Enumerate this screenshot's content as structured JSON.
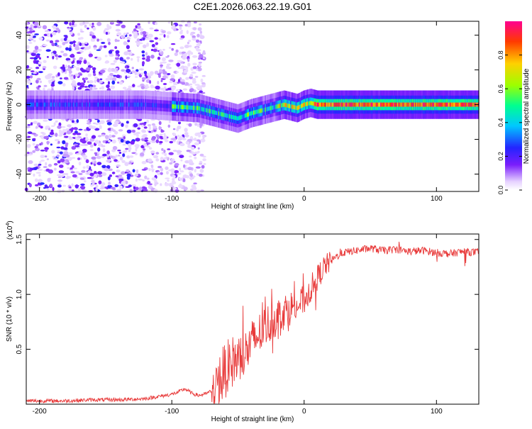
{
  "title": "C2E1.2026.063.22.19.G01",
  "chart_data": [
    {
      "type": "heatmap",
      "name": "spectrogram",
      "xlabel": "Height of straight line (km)",
      "ylabel": "Frequency (Hz)",
      "xlim": [
        -210,
        132
      ],
      "ylim": [
        -50,
        48
      ],
      "xticks": [
        -200,
        -100,
        0,
        100
      ],
      "yticks": [
        -40,
        -20,
        0,
        20,
        40
      ],
      "ridge_frequency_hz": {
        "x": [
          -210,
          -180,
          -150,
          -120,
          -100,
          -80,
          -70,
          -60,
          -50,
          -40,
          -30,
          -20,
          -15,
          -10,
          -5,
          0,
          5,
          10,
          40,
          80,
          100,
          132
        ],
        "y": [
          0,
          0,
          0,
          0,
          -1,
          -2,
          -4,
          -6,
          -8,
          -5,
          -3,
          -1,
          0,
          -1,
          -2,
          0,
          1,
          0,
          0,
          0,
          0,
          0
        ]
      },
      "colorbar": {
        "label": "Normalized spectral amplitude",
        "range": [
          0,
          1
        ],
        "ticks": [
          "0.0",
          "0.2",
          "0.4",
          "0.6",
          "0.8"
        ]
      }
    },
    {
      "type": "line",
      "name": "snr",
      "xlabel": "Height of straight line (km)",
      "ylabel": "SNR (10 * v/v)",
      "multiplier": "(x10",
      "multiplier_exp": "4",
      "xlim": [
        -210,
        132
      ],
      "ylim": [
        0,
        1.55
      ],
      "xticks": [
        -200,
        -100,
        0,
        100
      ],
      "yticks": [
        "0.5",
        "1.0",
        "1.5"
      ],
      "color": "#e83a3a",
      "series": {
        "x": [
          -210,
          -200,
          -180,
          -160,
          -140,
          -120,
          -110,
          -100,
          -95,
          -90,
          -85,
          -80,
          -75,
          -70,
          -65,
          -60,
          -55,
          -50,
          -45,
          -40,
          -35,
          -30,
          -25,
          -20,
          -15,
          -10,
          -5,
          0,
          5,
          10,
          15,
          20,
          25,
          30,
          40,
          50,
          60,
          70,
          80,
          90,
          100,
          110,
          120,
          132
        ],
        "y": [
          0.03,
          0.03,
          0.03,
          0.04,
          0.04,
          0.05,
          0.07,
          0.09,
          0.11,
          0.14,
          0.1,
          0.08,
          0.09,
          0.12,
          0.2,
          0.3,
          0.38,
          0.42,
          0.45,
          0.55,
          0.62,
          0.7,
          0.75,
          0.8,
          0.85,
          0.88,
          0.9,
          0.95,
          1.05,
          1.15,
          1.25,
          1.3,
          1.35,
          1.38,
          1.4,
          1.42,
          1.4,
          1.41,
          1.39,
          1.4,
          1.38,
          1.37,
          1.39,
          1.38
        ]
      }
    }
  ]
}
